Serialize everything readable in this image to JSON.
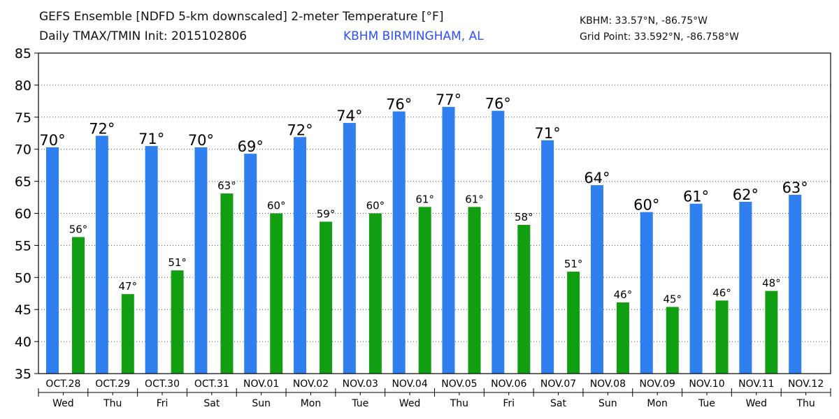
{
  "header": {
    "title_line1": "GEFS Ensemble [NDFD 5-km downscaled] 2-meter Temperature [°F]",
    "title_line2": "Daily TMAX/TMIN Init: 2015102806",
    "location": "KBHM BIRMINGHAM, AL",
    "station_coords": "KBHM: 33.57°N, -86.75°W",
    "grid_point": "Grid Point: 33.592°N, -86.758°W"
  },
  "chart_data": {
    "type": "bar",
    "ylim": [
      35,
      85
    ],
    "yticks": [
      35,
      40,
      45,
      50,
      55,
      60,
      65,
      70,
      75,
      80,
      85
    ],
    "grid": "horizontal dotted",
    "categories": [
      "OCT.28",
      "OCT.29",
      "OCT.30",
      "OCT.31",
      "NOV.01",
      "NOV.02",
      "NOV.03",
      "NOV.04",
      "NOV.05",
      "NOV.06",
      "NOV.07",
      "NOV.08",
      "NOV.09",
      "NOV.10",
      "NOV.11",
      "NOV.12"
    ],
    "weekdays": [
      "Wed",
      "Thu",
      "Fri",
      "Sat",
      "Sun",
      "Mon",
      "Tue",
      "Wed",
      "Thu",
      "Fri",
      "Sat",
      "Sun",
      "Mon",
      "Tue",
      "Wed",
      "Thu"
    ],
    "series": [
      {
        "key": "tmax",
        "color": "#2f7fef",
        "values": [
          70.3,
          72.1,
          70.5,
          70.3,
          69.3,
          71.9,
          74.1,
          75.9,
          76.6,
          76.0,
          71.4,
          64.4,
          60.2,
          61.5,
          61.8,
          62.9
        ],
        "labels": [
          "70°",
          "72°",
          "71°",
          "70°",
          "69°",
          "72°",
          "74°",
          "76°",
          "77°",
          "76°",
          "71°",
          "64°",
          "60°",
          "61°",
          "62°",
          "63°"
        ]
      },
      {
        "key": "tmin",
        "color": "#129e12",
        "values": [
          56.3,
          47.4,
          51.1,
          63.1,
          60.0,
          58.7,
          60.0,
          61.0,
          61.0,
          58.2,
          50.9,
          46.1,
          45.4,
          46.4,
          47.9,
          null
        ],
        "labels": [
          "56°",
          "47°",
          "51°",
          "63°",
          "60°",
          "59°",
          "60°",
          "61°",
          "61°",
          "58°",
          "51°",
          "46°",
          "45°",
          "46°",
          "48°",
          ""
        ]
      }
    ]
  }
}
